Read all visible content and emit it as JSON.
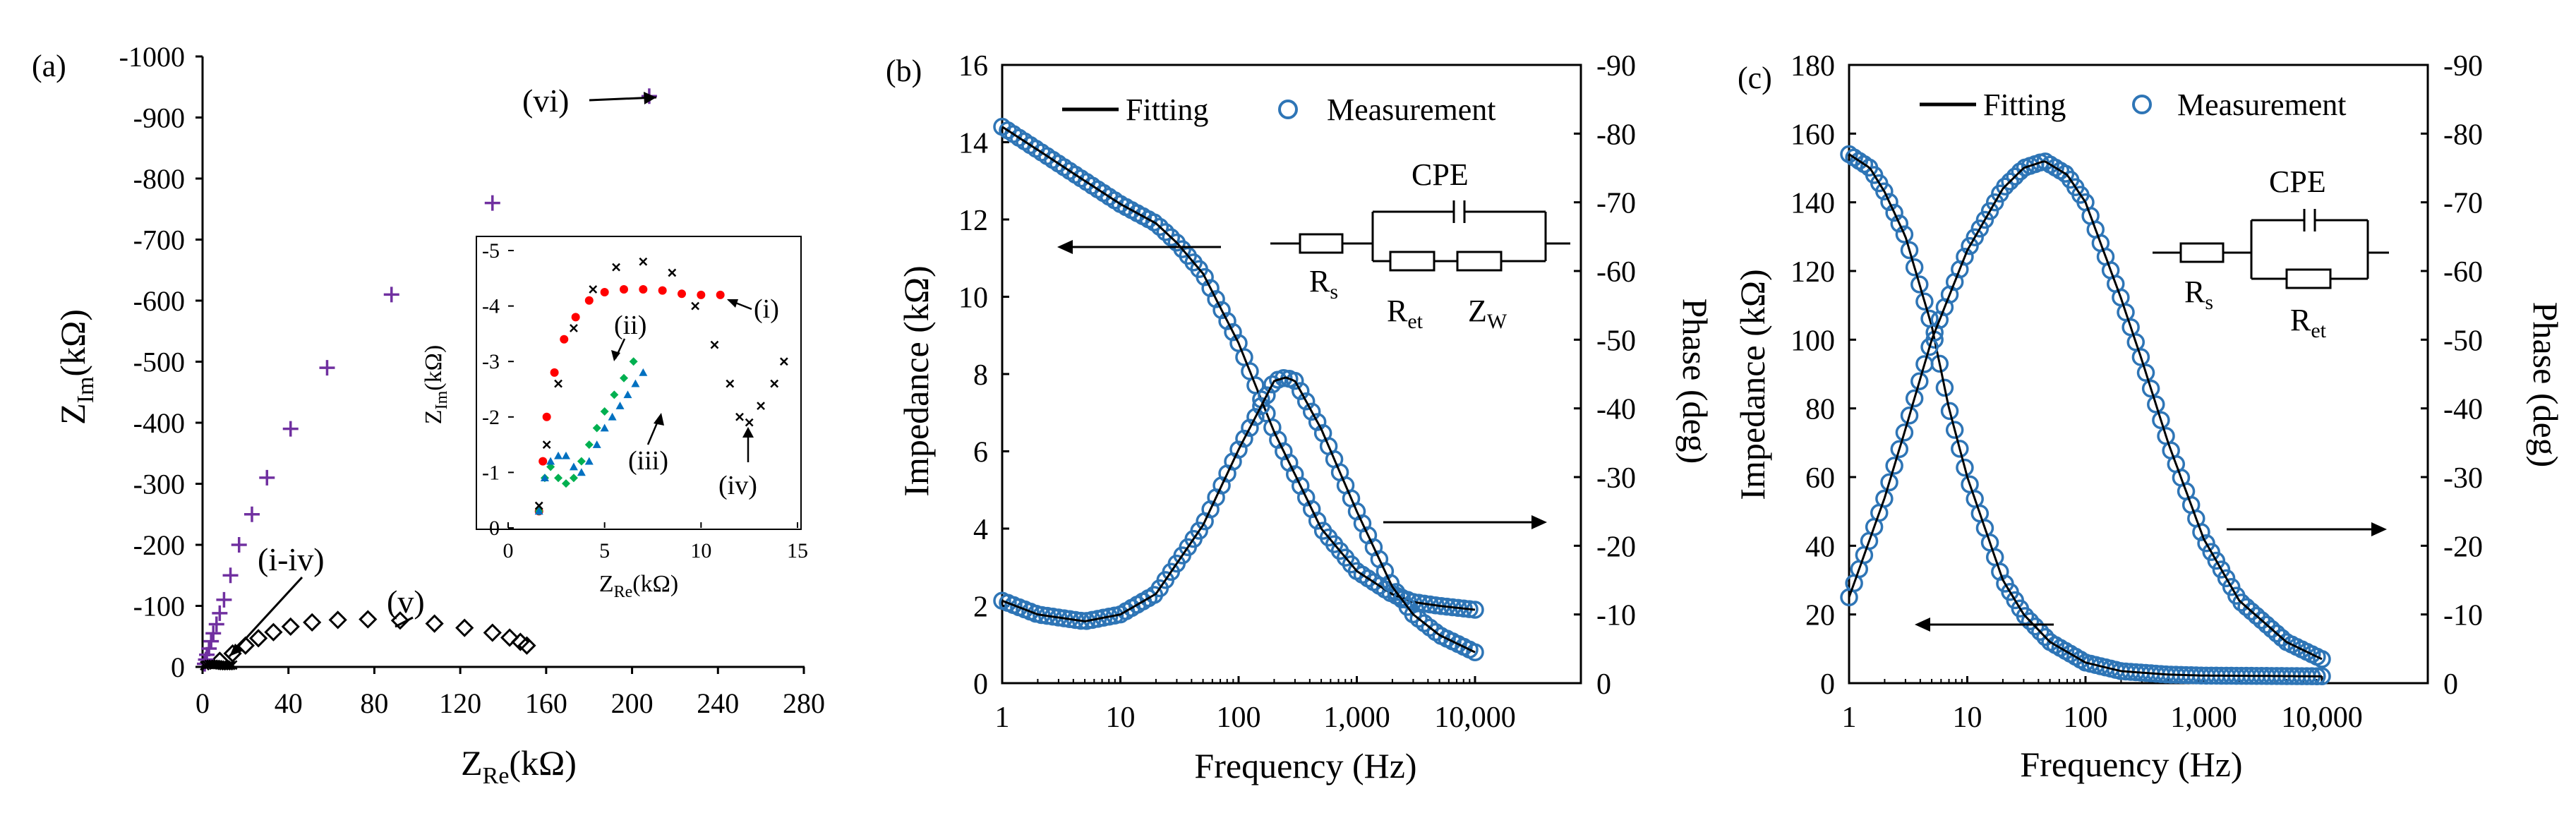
{
  "colors": {
    "axis": "#000000",
    "marker_blue": "#2e75b6",
    "fit_line": "#000000",
    "series_i": "#000000",
    "series_ii": "#ff0000",
    "series_iii": "#00b050",
    "series_iv_blue": "#0070c0",
    "series_v": "#000000",
    "series_vi": "#7030a0",
    "arrow": "#000000"
  },
  "panels": {
    "a": {
      "label": "(a)",
      "xlabel": "Z",
      "xlabel_sub": "Re",
      "xlabel_unit": "(kΩ)",
      "ylabel": "Z",
      "ylabel_sub": "Im",
      "ylabel_unit": "(kΩ)",
      "x_ticks": [
        "0",
        "40",
        "80",
        "120",
        "160",
        "200",
        "240",
        "280"
      ],
      "y_ticks": [
        "0",
        "-100",
        "-200",
        "-300",
        "-400",
        "-500",
        "-600",
        "-700",
        "-800",
        "-900",
        "-1000"
      ],
      "annotations": {
        "vi": "(vi)",
        "v": "(v)",
        "i_iv": "(i-iv)"
      },
      "inset": {
        "xlabel": "Z",
        "xlabel_sub": "Re",
        "xlabel_unit": "(kΩ)",
        "ylabel": "Z",
        "ylabel_sub": "Im",
        "ylabel_unit": "(kΩ)",
        "x_ticks": [
          "0",
          "5",
          "10",
          "15"
        ],
        "y_ticks": [
          "0",
          "-1",
          "-2",
          "-3",
          "-4",
          "-5"
        ],
        "annotations": {
          "i": "(i)",
          "ii": "(ii)",
          "iii": "(iii)",
          "iv": "(iv)"
        }
      }
    },
    "b": {
      "label": "(b)",
      "xlabel": "Frequency  (Hz)",
      "ylabel_left": "Impedance  (kΩ)",
      "ylabel_right": "Phase  (deg)",
      "x_ticks": [
        "1",
        "10",
        "100",
        "1,000",
        "10,000"
      ],
      "y_left_ticks": [
        "0",
        "2",
        "4",
        "6",
        "8",
        "10",
        "12",
        "14",
        "16"
      ],
      "y_right_ticks": [
        "0",
        "-10",
        "-20",
        "-30",
        "-40",
        "-50",
        "-60",
        "-70",
        "-80",
        "-90"
      ],
      "legend": {
        "fit": "Fitting",
        "meas": "Measurement"
      },
      "circuit": {
        "cpe": "CPE",
        "r1": "R",
        "r1_sub": "s",
        "r2": "R",
        "r2_sub": "et",
        "r3": "Z",
        "r3_sub": "W"
      }
    },
    "c": {
      "label": "(c)",
      "xlabel": "Frequency  (Hz)",
      "ylabel_left": "Impedance  (kΩ)",
      "ylabel_right": "Phase  (deg)",
      "x_ticks": [
        "1",
        "10",
        "100",
        "1,000",
        "10,000"
      ],
      "y_left_ticks": [
        "0",
        "20",
        "40",
        "60",
        "80",
        "100",
        "120",
        "140",
        "160",
        "180"
      ],
      "y_right_ticks": [
        "0",
        "-10",
        "-20",
        "-30",
        "-40",
        "-50",
        "-60",
        "-70",
        "-80",
        "-90"
      ],
      "legend": {
        "fit": "Fitting",
        "meas": "Measurement"
      },
      "circuit": {
        "cpe": "CPE",
        "r1": "R",
        "r1_sub": "s",
        "r2": "R",
        "r2_sub": "et"
      }
    }
  },
  "chart_data": [
    {
      "panel": "a",
      "type": "scatter",
      "title": "",
      "xlim": [
        0,
        280
      ],
      "ylim": [
        0,
        -1000
      ],
      "series": [
        {
          "name": "(v)",
          "marker": "diamond",
          "x": [
            8,
            14,
            20,
            26,
            33,
            41,
            51,
            63,
            77,
            92,
            108,
            122,
            135,
            143,
            148,
            151
          ],
          "y": [
            -10,
            -22,
            -35,
            -47,
            -57,
            -66,
            -73,
            -77,
            -78,
            -76,
            -71,
            -64,
            -56,
            -48,
            -41,
            -35
          ]
        },
        {
          "name": "(vi)",
          "marker": "plus",
          "x": [
            1,
            1.5,
            2,
            3,
            4,
            5,
            6.5,
            8,
            10,
            13,
            17,
            23,
            30,
            41,
            58,
            88,
            135,
            208
          ],
          "y": [
            -5,
            -12,
            -20,
            -30,
            -42,
            -55,
            -70,
            -88,
            -110,
            -150,
            -200,
            -250,
            -310,
            -390,
            -490,
            -610,
            -760,
            -935
          ]
        },
        {
          "name": "(i-iv)",
          "marker": "cross",
          "x": [
            1,
            2,
            3,
            4,
            5,
            6,
            7,
            8,
            9,
            10,
            11,
            12,
            13,
            14
          ],
          "y": [
            -2,
            -3,
            -4,
            -4.5,
            -4.3,
            -4,
            -3.6,
            -3,
            -2.6,
            -2.3,
            -2.1,
            -2,
            -2.5,
            -3
          ]
        }
      ]
    },
    {
      "panel": "a-inset",
      "type": "scatter",
      "xlim": [
        0,
        15
      ],
      "ylim": [
        0,
        -5
      ],
      "series": [
        {
          "name": "(i)",
          "marker": "circle",
          "x": [
            1.6,
            1.8,
            2.0,
            2.4,
            2.9,
            3.5,
            4.2,
            5.0,
            6.0,
            7.0,
            8.0,
            9.0,
            10.0,
            11.0
          ],
          "y": [
            -0.3,
            -1.2,
            -2.0,
            -2.8,
            -3.4,
            -3.8,
            -4.1,
            -4.25,
            -4.3,
            -4.3,
            -4.28,
            -4.22,
            -4.2,
            -4.2
          ]
        },
        {
          "name": "(ii)",
          "marker": "diamond",
          "x": [
            1.6,
            1.9,
            2.2,
            2.6,
            3.0,
            3.4,
            3.8,
            4.2,
            4.6,
            5.0,
            5.5,
            6.0,
            6.5
          ],
          "y": [
            -0.3,
            -0.9,
            -1.1,
            -0.9,
            -0.8,
            -0.9,
            -1.2,
            -1.5,
            -1.8,
            -2.1,
            -2.4,
            -2.7,
            -3.0
          ]
        },
        {
          "name": "(iii)",
          "marker": "triangle",
          "x": [
            1.6,
            1.9,
            2.2,
            2.6,
            3.0,
            3.4,
            3.8,
            4.2,
            4.6,
            5.0,
            5.4,
            5.8,
            6.2,
            6.6,
            7.0
          ],
          "y": [
            -0.3,
            -0.9,
            -1.2,
            -1.3,
            -1.3,
            -1.1,
            -1.0,
            -1.2,
            -1.5,
            -1.8,
            -2.0,
            -2.2,
            -2.4,
            -2.6,
            -2.8
          ]
        },
        {
          "name": "(iv)",
          "marker": "cross",
          "x": [
            1.6,
            2.0,
            2.6,
            3.4,
            4.4,
            5.6,
            7.0,
            8.5,
            9.7,
            10.7,
            11.5,
            12.0,
            12.5,
            13.1,
            13.8,
            14.3
          ],
          "y": [
            -0.4,
            -1.5,
            -2.6,
            -3.6,
            -4.3,
            -4.7,
            -4.8,
            -4.6,
            -4.0,
            -3.3,
            -2.6,
            -2.0,
            -1.9,
            -2.2,
            -2.6,
            -3.0
          ]
        }
      ]
    },
    {
      "panel": "b",
      "type": "line",
      "x_scale": "log",
      "xlim": [
        1,
        10000
      ],
      "ylim_left": [
        0,
        16
      ],
      "ylim_right": [
        0,
        -90
      ],
      "series": [
        {
          "name": "Impedance",
          "axis": "left",
          "x": [
            1,
            2,
            5,
            10,
            20,
            30,
            50,
            100,
            200,
            300,
            500,
            1000,
            2000,
            3000,
            5000,
            10000
          ],
          "y": [
            14.4,
            13.8,
            13.0,
            12.4,
            11.9,
            11.4,
            10.6,
            8.8,
            6.5,
            5.4,
            4.0,
            2.9,
            2.3,
            2.1,
            2.0,
            1.9
          ]
        },
        {
          "name": "Phase",
          "axis": "right",
          "x": [
            1,
            2,
            5,
            10,
            20,
            50,
            100,
            200,
            250,
            300,
            500,
            1000,
            2000,
            3000,
            5000,
            10000
          ],
          "y": [
            -12,
            -10,
            -9,
            -10,
            -13,
            -23,
            -34,
            -44,
            -44.5,
            -44,
            -37,
            -25,
            -14,
            -10,
            -7,
            -4.5
          ]
        }
      ]
    },
    {
      "panel": "c",
      "type": "line",
      "x_scale": "log",
      "xlim": [
        1,
        10000
      ],
      "ylim_left": [
        0,
        180
      ],
      "ylim_right": [
        0,
        -90
      ],
      "series": [
        {
          "name": "Impedance",
          "axis": "left",
          "x": [
            1,
            1.5,
            2,
            3,
            5,
            7,
            10,
            20,
            30,
            50,
            100,
            200,
            500,
            1000,
            10000
          ],
          "y": [
            154,
            150,
            143,
            130,
            104,
            80,
            60,
            30,
            20,
            12,
            6,
            3.5,
            2.5,
            2.2,
            2.0
          ]
        },
        {
          "name": "Phase",
          "axis": "right",
          "x": [
            1,
            2,
            3,
            5,
            10,
            20,
            30,
            45,
            70,
            100,
            200,
            300,
            500,
            1000,
            2000,
            5000,
            10000
          ],
          "y": [
            -12.5,
            -27,
            -37,
            -50,
            -63,
            -72,
            -75,
            -76,
            -74,
            -70,
            -56,
            -47,
            -35,
            -21,
            -12,
            -6,
            -3.5
          ]
        }
      ]
    }
  ]
}
